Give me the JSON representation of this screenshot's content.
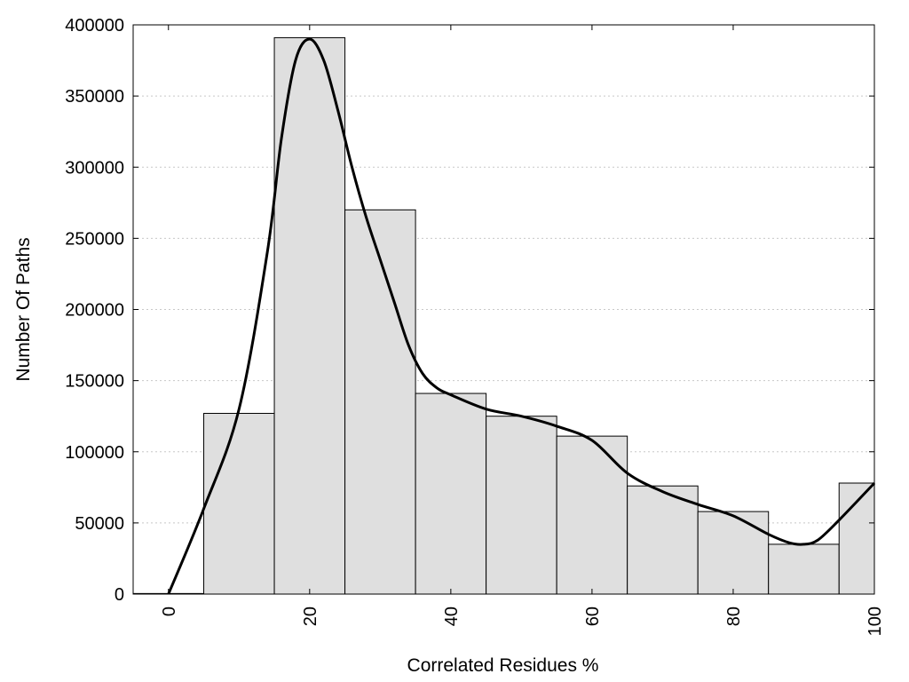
{
  "chart_data": {
    "type": "bar",
    "xlabel": "Correlated Residues %",
    "ylabel": "Number Of Paths",
    "xlim": [
      -5,
      100
    ],
    "ylim": [
      0,
      400000
    ],
    "x_ticks": [
      0,
      20,
      40,
      60,
      80,
      100
    ],
    "y_ticks": [
      0,
      50000,
      100000,
      150000,
      200000,
      250000,
      300000,
      350000,
      400000
    ],
    "grid": "horizontal-dotted",
    "bins": [
      {
        "start": -5,
        "end": 5,
        "value": 400
      },
      {
        "start": 5,
        "end": 15,
        "value": 127000
      },
      {
        "start": 15,
        "end": 25,
        "value": 391000
      },
      {
        "start": 25,
        "end": 35,
        "value": 270000
      },
      {
        "start": 35,
        "end": 45,
        "value": 141000
      },
      {
        "start": 45,
        "end": 55,
        "value": 125000
      },
      {
        "start": 55,
        "end": 65,
        "value": 111000
      },
      {
        "start": 65,
        "end": 75,
        "value": 76000
      },
      {
        "start": 75,
        "end": 85,
        "value": 58000
      },
      {
        "start": 85,
        "end": 95,
        "value": 35000
      },
      {
        "start": 95,
        "end": 100,
        "value": 78000
      }
    ],
    "density_curve": {
      "x": [
        0,
        5,
        10,
        14,
        16,
        18,
        20,
        22,
        24,
        26,
        28,
        30,
        32,
        34,
        36,
        38,
        40,
        45,
        50,
        55,
        60,
        65,
        70,
        75,
        80,
        85,
        88,
        90,
        92,
        95,
        100
      ],
      "y": [
        0,
        60000,
        130000,
        240000,
        320000,
        375000,
        390000,
        375000,
        340000,
        300000,
        265000,
        235000,
        205000,
        175000,
        155000,
        145000,
        140000,
        130000,
        125000,
        118000,
        108000,
        85000,
        72000,
        63000,
        55000,
        42000,
        36000,
        35000,
        38000,
        52000,
        78000
      ]
    }
  }
}
